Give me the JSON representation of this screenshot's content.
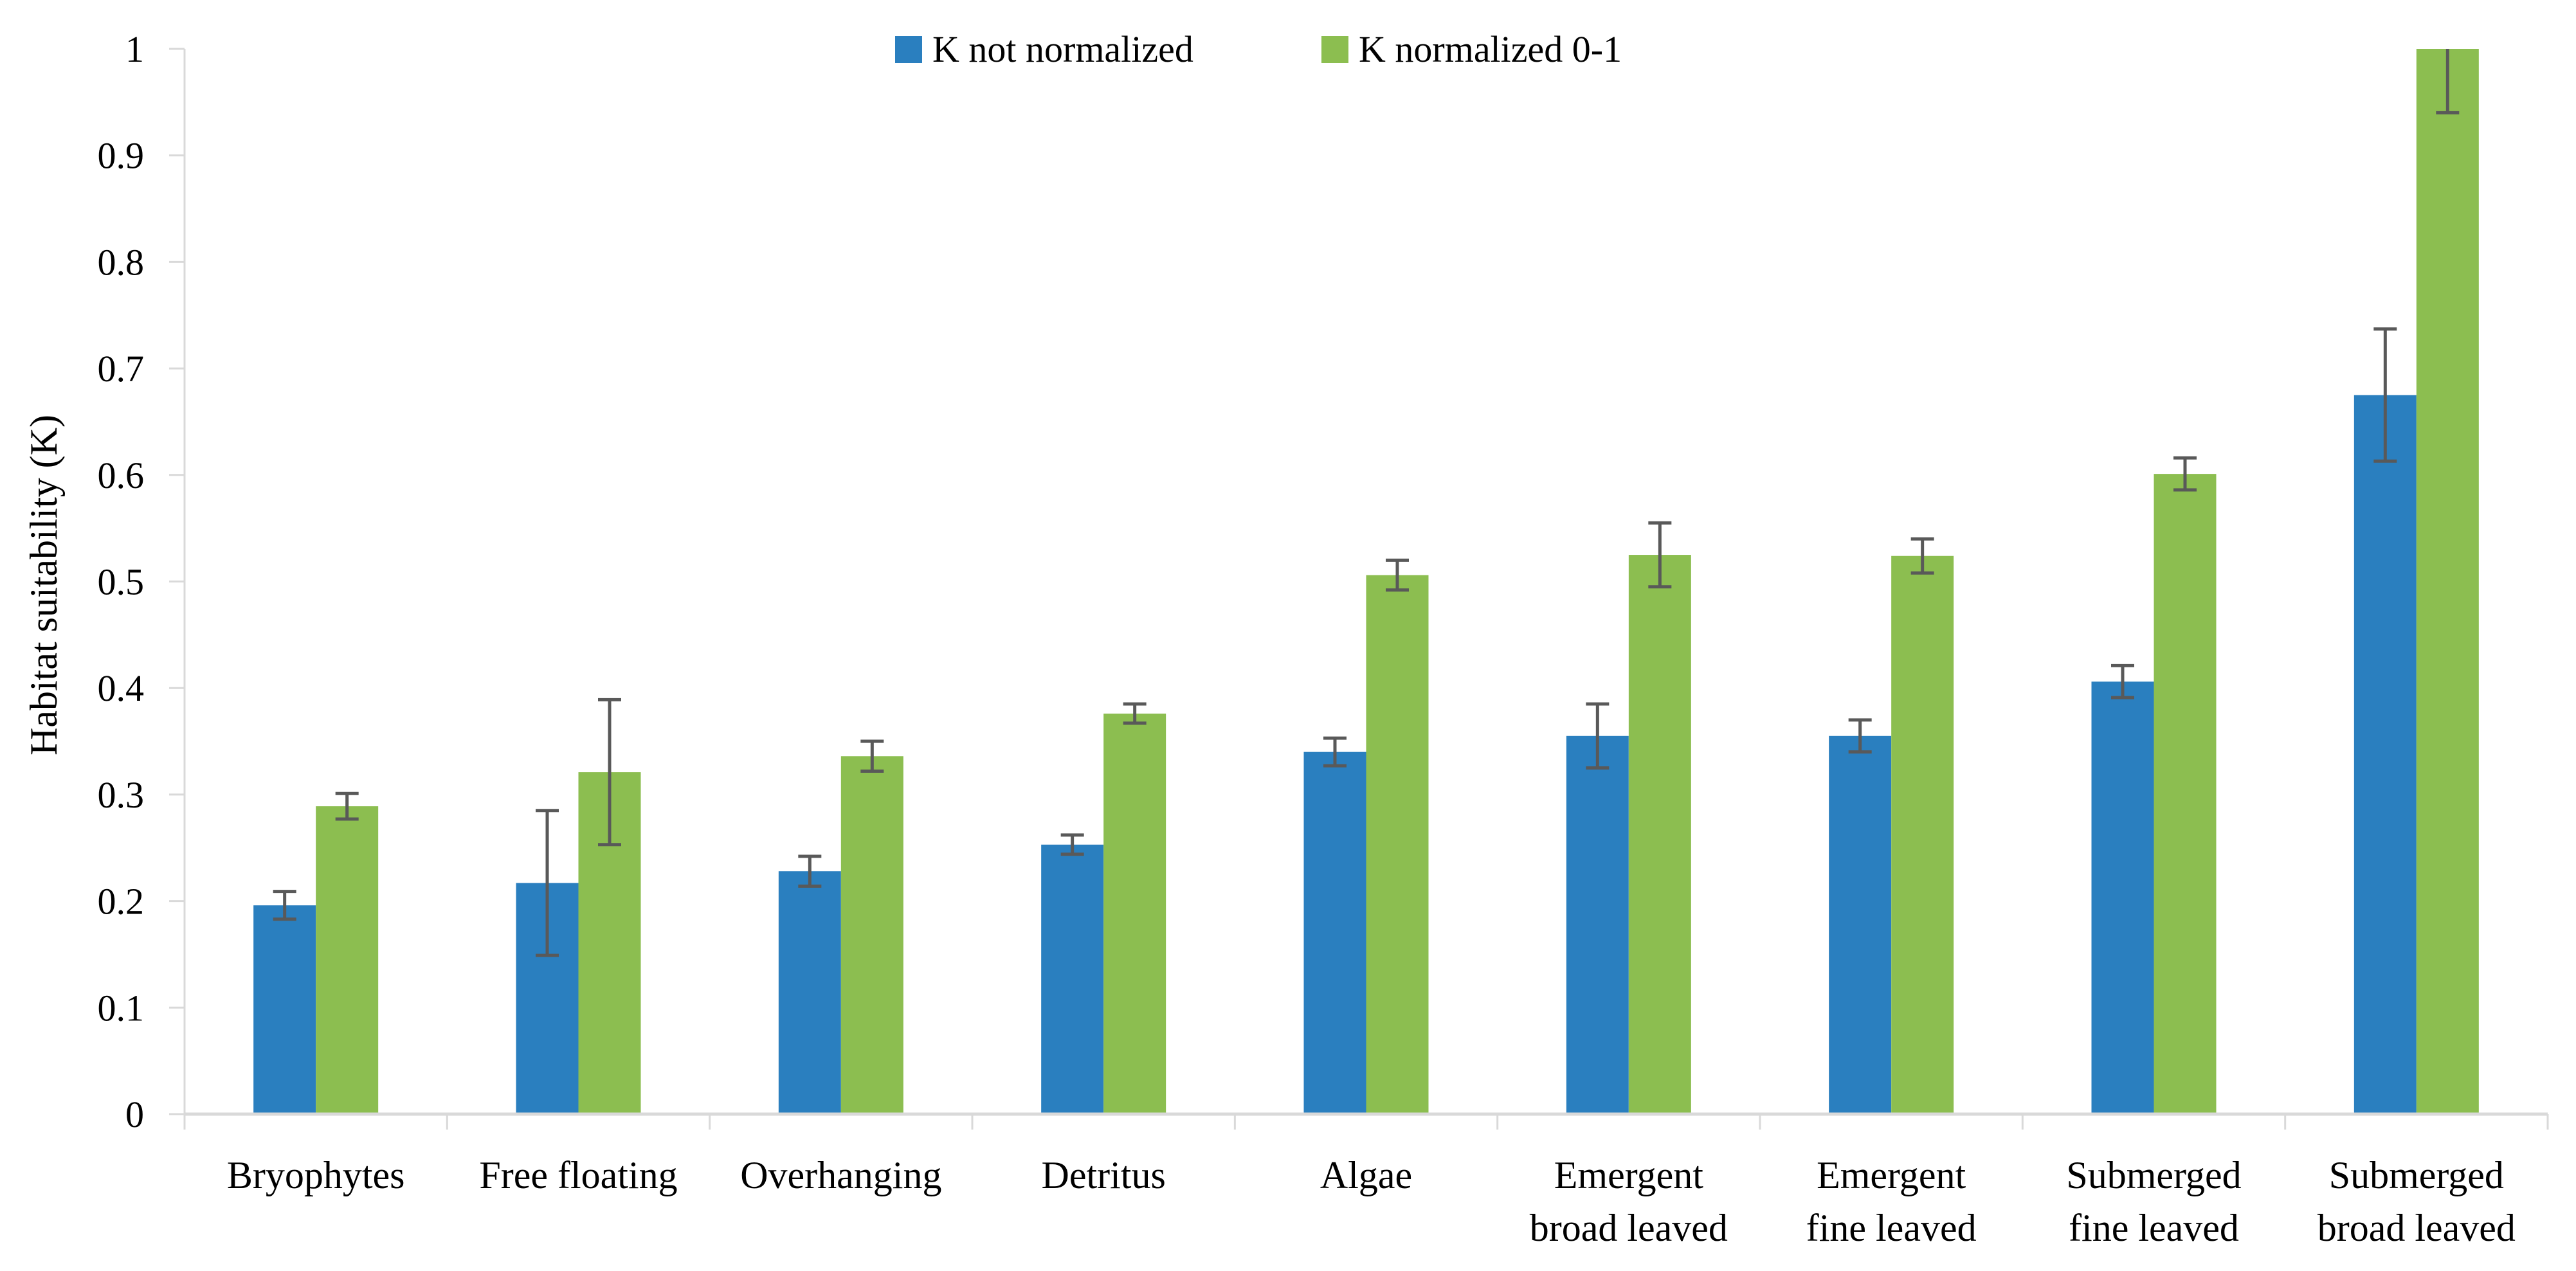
{
  "page": {
    "background": "#ffffff"
  },
  "chart_data": {
    "type": "bar",
    "title": "",
    "xlabel": "",
    "ylabel": "Habitat suitability (K)",
    "ylim": [
      0,
      1
    ],
    "ytick_labels": [
      "0",
      "0.1",
      "0.2",
      "0.3",
      "0.4",
      "0.5",
      "0.6",
      "0.7",
      "0.8",
      "0.9",
      "1"
    ],
    "grid": false,
    "legend_position": "top-center",
    "categories": [
      "Bryophytes",
      "Free floating",
      "Overhanging",
      "Detritus",
      "Algae",
      "Emergent broad leaved",
      "Emergent fine leaved",
      "Submerged fine leaved",
      "Submerged broad leaved"
    ],
    "category_label_lines": [
      [
        "Bryophytes"
      ],
      [
        "Free floating"
      ],
      [
        "Overhanging"
      ],
      [
        "Detritus"
      ],
      [
        "Algae"
      ],
      [
        "Emergent",
        "broad leaved"
      ],
      [
        "Emergent",
        "fine leaved"
      ],
      [
        "Submerged",
        "fine leaved"
      ],
      [
        "Submerged",
        "broad leaved"
      ]
    ],
    "series": [
      {
        "name": "K not normalized",
        "color": "#2A7FBF",
        "values": [
          0.196,
          0.217,
          0.228,
          0.253,
          0.34,
          0.355,
          0.355,
          0.406,
          0.675
        ],
        "errors": [
          0.013,
          0.068,
          0.014,
          0.009,
          0.013,
          0.03,
          0.015,
          0.015,
          0.062
        ]
      },
      {
        "name": "K normalized 0-1",
        "color": "#8CBE50",
        "values": [
          0.289,
          0.321,
          0.336,
          0.376,
          0.506,
          0.525,
          0.524,
          0.601,
          1.0
        ],
        "errors": [
          0.012,
          0.068,
          0.014,
          0.009,
          0.014,
          0.03,
          0.016,
          0.015,
          0.06
        ]
      }
    ],
    "error_bar_color": "#595959",
    "axis_color": "#D9D9D9",
    "text_color": "#000000"
  }
}
